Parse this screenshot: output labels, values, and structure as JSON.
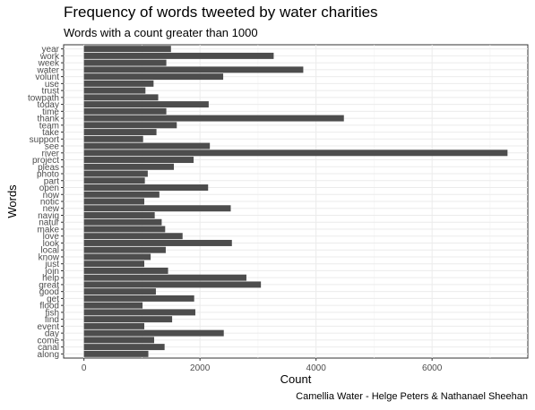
{
  "title": "Frequency of words tweeted by water charities",
  "subtitle": "Words with a count greater than 1000",
  "caption": "Camellia Water - Helge Peters & Nathanael Sheehan",
  "chart_data": {
    "type": "bar",
    "orientation": "horizontal",
    "xlabel": "Count",
    "ylabel": "Words",
    "xlim": [
      -350,
      7650
    ],
    "x_ticks": [
      0,
      2000,
      4000,
      6000
    ],
    "x_tick_labels": [
      "0",
      "2000",
      "4000",
      "6000"
    ],
    "grid": true,
    "bar_color": "#4d4d4d",
    "categories": [
      "year",
      "work",
      "week",
      "water",
      "volunt",
      "use",
      "trust",
      "towpath",
      "today",
      "time",
      "thank",
      "team",
      "take",
      "support",
      "see",
      "river",
      "project",
      "pleas",
      "photo",
      "part",
      "open",
      "now",
      "notic",
      "new",
      "navig",
      "natur",
      "make",
      "love",
      "look",
      "local",
      "know",
      "just",
      "join",
      "help",
      "great",
      "good",
      "get",
      "flood",
      "fish",
      "find",
      "event",
      "day",
      "come",
      "canal",
      "along"
    ],
    "values": [
      1500,
      3270,
      1420,
      3780,
      2400,
      1200,
      1060,
      1280,
      2150,
      1420,
      4480,
      1600,
      1250,
      1020,
      2170,
      7300,
      1890,
      1550,
      1100,
      1050,
      2140,
      1300,
      1040,
      2530,
      1220,
      1340,
      1400,
      1700,
      2550,
      1410,
      1150,
      1040,
      1450,
      2800,
      3050,
      1240,
      1900,
      1010,
      1920,
      1520,
      1040,
      2410,
      1210,
      1390,
      1110
    ]
  }
}
